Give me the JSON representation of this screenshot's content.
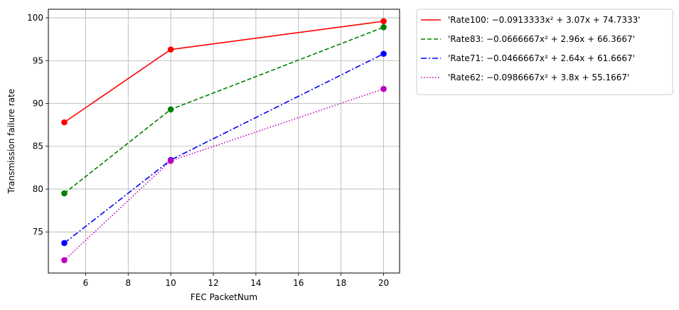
{
  "chart_data": {
    "type": "line",
    "title": "",
    "xlabel": "FEC PacketNum",
    "ylabel": "Transmission failure rate",
    "x": [
      5,
      10,
      20
    ],
    "xlim": [
      4.25,
      20.75
    ],
    "ylim": [
      70.2,
      101
    ],
    "xticks": [
      "6",
      "8",
      "10",
      "12",
      "14",
      "16",
      "18",
      "20"
    ],
    "yticks": [
      "75",
      "80",
      "85",
      "90",
      "95",
      "100"
    ],
    "grid": true,
    "legend_position": "outside-top-right",
    "series": [
      {
        "name": "'Rate100: −0.0913333x² + 3.07x + 74.7333'",
        "values": [
          87.8,
          96.3,
          99.6
        ],
        "color": "#ff0000",
        "style": "solid"
      },
      {
        "name": "'Rate83: −0.0666667x² + 2.96x + 66.3667'",
        "values": [
          79.5,
          89.3,
          98.9
        ],
        "color": "#008000",
        "style": "dashed"
      },
      {
        "name": "'Rate71: −0.0466667x² + 2.64x + 61.6667'",
        "values": [
          73.7,
          83.4,
          95.8
        ],
        "color": "#0000ff",
        "style": "dashdot"
      },
      {
        "name": "'Rate62: −0.0986667x² + 3.8x + 55.1667'",
        "values": [
          71.7,
          83.3,
          91.7
        ],
        "color": "#bf00bf",
        "style": "dotted"
      }
    ]
  }
}
